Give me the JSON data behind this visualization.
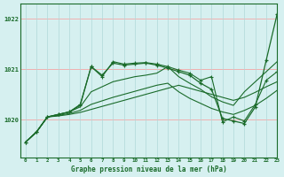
{
  "title": "Graphe pression niveau de la mer (hPa)",
  "bg_color": "#d6f0f0",
  "grid_h_color": "#f0b0b0",
  "grid_v_color": "#b0d8d8",
  "line_color": "#1a6b2a",
  "xlim": [
    -0.5,
    23
  ],
  "ylim": [
    1019.25,
    1022.3
  ],
  "yticks": [
    1020,
    1021,
    1022
  ],
  "xticks": [
    0,
    1,
    2,
    3,
    4,
    5,
    6,
    7,
    8,
    9,
    10,
    11,
    12,
    13,
    14,
    15,
    16,
    17,
    18,
    19,
    20,
    21,
    22,
    23
  ],
  "series": [
    [
      1019.55,
      1019.75,
      1020.05,
      1020.1,
      1020.15,
      1020.3,
      1021.05,
      1020.85,
      1021.15,
      1021.1,
      1021.12,
      1021.13,
      1021.1,
      1021.05,
      1020.98,
      1020.92,
      1020.78,
      1020.85,
      1019.95,
      1020.05,
      1019.97,
      1020.3,
      1020.78,
      1020.95
    ],
    [
      1019.55,
      1019.75,
      1020.05,
      1020.1,
      1020.15,
      1020.25,
      1020.55,
      1020.65,
      1020.75,
      1020.8,
      1020.85,
      1020.88,
      1020.92,
      1021.05,
      1020.85,
      1020.72,
      1020.6,
      1020.45,
      1020.35,
      1020.28,
      1020.55,
      1020.75,
      1020.95,
      1021.15
    ],
    [
      1019.55,
      1019.75,
      1020.05,
      1020.08,
      1020.12,
      1020.18,
      1020.3,
      1020.37,
      1020.44,
      1020.5,
      1020.56,
      1020.62,
      1020.68,
      1020.72,
      1020.55,
      1020.42,
      1020.32,
      1020.22,
      1020.15,
      1020.1,
      1020.18,
      1020.28,
      1020.42,
      1020.58
    ],
    [
      1019.55,
      1019.75,
      1020.05,
      1020.07,
      1020.1,
      1020.14,
      1020.2,
      1020.26,
      1020.32,
      1020.38,
      1020.44,
      1020.5,
      1020.56,
      1020.62,
      1020.68,
      1020.62,
      1020.56,
      1020.5,
      1020.44,
      1020.38,
      1020.44,
      1020.54,
      1020.65,
      1020.75
    ]
  ],
  "series5": [
    1019.55,
    1019.75,
    1020.05,
    1020.1,
    1020.15,
    1020.28,
    1021.05,
    1020.88,
    1021.12,
    1021.08,
    1021.1,
    1021.12,
    1021.08,
    1021.02,
    1020.95,
    1020.88,
    1020.72,
    1020.6,
    1020.02,
    1019.97,
    1019.92,
    1020.25,
    1021.18,
    1022.1
  ]
}
